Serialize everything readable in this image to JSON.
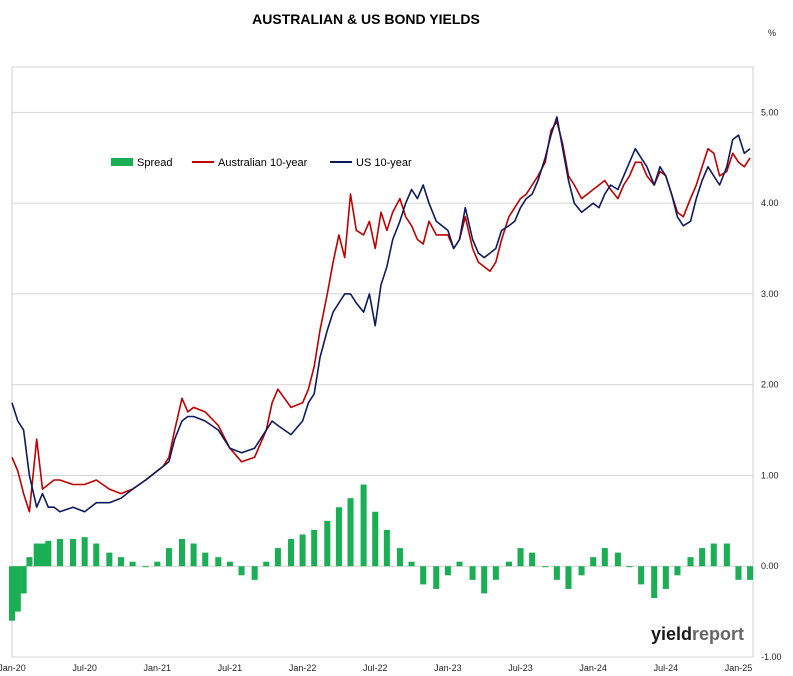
{
  "chart_data": {
    "type": "line",
    "title": "AUSTRALIAN & US BOND YIELDS",
    "ylabel": "%",
    "ylim": [
      -1.0,
      5.5
    ],
    "yticks": [
      "5.00",
      "4.00",
      "3.00",
      "2.00",
      "1.00",
      "0.00",
      "-1.00"
    ],
    "ytick_values": [
      5,
      4,
      3,
      2,
      1,
      0,
      -1
    ],
    "x_domain": [
      2020.0,
      2025.1
    ],
    "xticks": [
      "Jan-20",
      "Jul-20",
      "Jan-21",
      "Jul-21",
      "Jan-22",
      "Jul-22",
      "Jan-23",
      "Jul-23",
      "Jan-24",
      "Jul-24",
      "Jan-25"
    ],
    "xtick_values": [
      2020.0,
      2020.5,
      2021.0,
      2021.5,
      2022.0,
      2022.5,
      2023.0,
      2023.5,
      2024.0,
      2024.5,
      2025.0
    ],
    "grid": true,
    "legend_position": "top-left",
    "series": [
      {
        "name": "Spread",
        "kind": "bar",
        "color": "#1aaf54",
        "x": [
          2020.0,
          2020.04,
          2020.08,
          2020.12,
          2020.17,
          2020.21,
          2020.25,
          2020.33,
          2020.42,
          2020.5,
          2020.58,
          2020.67,
          2020.75,
          2020.83,
          2020.92,
          2021.0,
          2021.08,
          2021.17,
          2021.25,
          2021.33,
          2021.42,
          2021.5,
          2021.58,
          2021.67,
          2021.75,
          2021.83,
          2021.92,
          2022.0,
          2022.08,
          2022.17,
          2022.25,
          2022.33,
          2022.42,
          2022.5,
          2022.58,
          2022.67,
          2022.75,
          2022.83,
          2022.92,
          2023.0,
          2023.08,
          2023.17,
          2023.25,
          2023.33,
          2023.42,
          2023.5,
          2023.58,
          2023.67,
          2023.75,
          2023.83,
          2023.92,
          2024.0,
          2024.08,
          2024.17,
          2024.25,
          2024.33,
          2024.42,
          2024.5,
          2024.58,
          2024.67,
          2024.75,
          2024.83,
          2024.92,
          2025.0,
          2025.08
        ],
        "values": [
          -0.6,
          -0.5,
          -0.3,
          0.1,
          0.25,
          0.25,
          0.28,
          0.3,
          0.3,
          0.32,
          0.25,
          0.15,
          0.1,
          0.05,
          0.0,
          0.05,
          0.2,
          0.3,
          0.25,
          0.15,
          0.1,
          0.05,
          -0.1,
          -0.15,
          0.05,
          0.2,
          0.3,
          0.35,
          0.4,
          0.5,
          0.65,
          0.75,
          0.9,
          0.6,
          0.4,
          0.2,
          0.05,
          -0.2,
          -0.25,
          -0.1,
          0.05,
          -0.15,
          -0.3,
          -0.15,
          0.05,
          0.2,
          0.15,
          0.0,
          -0.15,
          -0.25,
          -0.1,
          0.1,
          0.2,
          0.15,
          0.0,
          -0.2,
          -0.35,
          -0.25,
          -0.1,
          0.1,
          0.2,
          0.25,
          0.25,
          -0.15,
          -0.15
        ]
      },
      {
        "name": "Australian 10-year",
        "kind": "line",
        "color": "#c00000",
        "x": [
          2020.0,
          2020.04,
          2020.08,
          2020.12,
          2020.17,
          2020.21,
          2020.25,
          2020.29,
          2020.33,
          2020.42,
          2020.5,
          2020.58,
          2020.67,
          2020.75,
          2020.83,
          2020.92,
          2021.0,
          2021.04,
          2021.08,
          2021.12,
          2021.17,
          2021.21,
          2021.25,
          2021.33,
          2021.42,
          2021.5,
          2021.58,
          2021.67,
          2021.75,
          2021.79,
          2021.83,
          2021.92,
          2022.0,
          2022.04,
          2022.08,
          2022.12,
          2022.17,
          2022.21,
          2022.25,
          2022.29,
          2022.33,
          2022.37,
          2022.42,
          2022.46,
          2022.5,
          2022.54,
          2022.58,
          2022.62,
          2022.67,
          2022.71,
          2022.75,
          2022.79,
          2022.83,
          2022.87,
          2022.92,
          2023.0,
          2023.04,
          2023.08,
          2023.12,
          2023.17,
          2023.21,
          2023.25,
          2023.29,
          2023.33,
          2023.37,
          2023.42,
          2023.46,
          2023.5,
          2023.54,
          2023.58,
          2023.62,
          2023.67,
          2023.71,
          2023.75,
          2023.79,
          2023.83,
          2023.87,
          2023.92,
          2024.0,
          2024.04,
          2024.08,
          2024.12,
          2024.17,
          2024.21,
          2024.25,
          2024.29,
          2024.33,
          2024.37,
          2024.42,
          2024.46,
          2024.5,
          2024.54,
          2024.58,
          2024.62,
          2024.67,
          2024.71,
          2024.75,
          2024.79,
          2024.83,
          2024.87,
          2024.92,
          2024.96,
          2025.0,
          2025.04,
          2025.08
        ],
        "values": [
          1.2,
          1.05,
          0.8,
          0.6,
          1.4,
          0.85,
          0.9,
          0.95,
          0.95,
          0.9,
          0.9,
          0.95,
          0.85,
          0.8,
          0.85,
          0.95,
          1.05,
          1.1,
          1.2,
          1.5,
          1.85,
          1.7,
          1.75,
          1.7,
          1.55,
          1.3,
          1.15,
          1.2,
          1.5,
          1.8,
          1.95,
          1.75,
          1.8,
          1.95,
          2.2,
          2.6,
          3.0,
          3.35,
          3.65,
          3.4,
          4.1,
          3.7,
          3.65,
          3.8,
          3.5,
          3.9,
          3.7,
          3.9,
          4.05,
          3.85,
          3.75,
          3.6,
          3.55,
          3.8,
          3.65,
          3.65,
          3.5,
          3.6,
          3.85,
          3.5,
          3.35,
          3.3,
          3.25,
          3.35,
          3.6,
          3.85,
          3.95,
          4.05,
          4.1,
          4.2,
          4.3,
          4.45,
          4.8,
          4.9,
          4.65,
          4.3,
          4.2,
          4.05,
          4.15,
          4.2,
          4.25,
          4.15,
          4.05,
          4.2,
          4.3,
          4.45,
          4.45,
          4.3,
          4.2,
          4.35,
          4.3,
          4.1,
          3.9,
          3.85,
          4.05,
          4.2,
          4.4,
          4.6,
          4.55,
          4.3,
          4.35,
          4.55,
          4.45,
          4.4,
          4.5
        ]
      },
      {
        "name": "US 10-year",
        "kind": "line",
        "color": "#0d1b5e",
        "x": [
          2020.0,
          2020.04,
          2020.08,
          2020.12,
          2020.17,
          2020.21,
          2020.25,
          2020.29,
          2020.33,
          2020.42,
          2020.5,
          2020.58,
          2020.67,
          2020.75,
          2020.83,
          2020.92,
          2021.0,
          2021.04,
          2021.08,
          2021.12,
          2021.17,
          2021.21,
          2021.25,
          2021.33,
          2021.42,
          2021.5,
          2021.58,
          2021.67,
          2021.75,
          2021.79,
          2021.83,
          2021.92,
          2022.0,
          2022.04,
          2022.08,
          2022.12,
          2022.17,
          2022.21,
          2022.25,
          2022.29,
          2022.33,
          2022.37,
          2022.42,
          2022.46,
          2022.5,
          2022.54,
          2022.58,
          2022.62,
          2022.67,
          2022.71,
          2022.75,
          2022.79,
          2022.83,
          2022.87,
          2022.92,
          2023.0,
          2023.04,
          2023.08,
          2023.12,
          2023.17,
          2023.21,
          2023.25,
          2023.29,
          2023.33,
          2023.37,
          2023.42,
          2023.46,
          2023.5,
          2023.54,
          2023.58,
          2023.62,
          2023.67,
          2023.71,
          2023.75,
          2023.79,
          2023.83,
          2023.87,
          2023.92,
          2024.0,
          2024.04,
          2024.08,
          2024.12,
          2024.17,
          2024.21,
          2024.25,
          2024.29,
          2024.33,
          2024.37,
          2024.42,
          2024.46,
          2024.5,
          2024.54,
          2024.58,
          2024.62,
          2024.67,
          2024.71,
          2024.75,
          2024.79,
          2024.83,
          2024.87,
          2024.92,
          2024.96,
          2025.0,
          2025.04,
          2025.08
        ],
        "values": [
          1.8,
          1.6,
          1.5,
          1.0,
          0.65,
          0.8,
          0.65,
          0.65,
          0.6,
          0.65,
          0.6,
          0.7,
          0.7,
          0.75,
          0.85,
          0.95,
          1.05,
          1.1,
          1.15,
          1.4,
          1.6,
          1.65,
          1.65,
          1.6,
          1.5,
          1.3,
          1.25,
          1.3,
          1.5,
          1.6,
          1.55,
          1.45,
          1.6,
          1.8,
          1.9,
          2.3,
          2.6,
          2.8,
          2.9,
          3.0,
          3.0,
          2.9,
          2.8,
          3.0,
          2.65,
          3.1,
          3.3,
          3.6,
          3.8,
          4.0,
          4.15,
          4.05,
          4.2,
          4.0,
          3.8,
          3.7,
          3.5,
          3.6,
          3.95,
          3.6,
          3.45,
          3.4,
          3.45,
          3.5,
          3.7,
          3.75,
          3.8,
          3.95,
          4.05,
          4.1,
          4.25,
          4.5,
          4.75,
          4.95,
          4.6,
          4.25,
          4.0,
          3.9,
          4.0,
          3.95,
          4.1,
          4.2,
          4.15,
          4.3,
          4.45,
          4.6,
          4.5,
          4.4,
          4.2,
          4.4,
          4.3,
          4.1,
          3.85,
          3.75,
          3.8,
          4.05,
          4.25,
          4.4,
          4.3,
          4.2,
          4.4,
          4.7,
          4.75,
          4.55,
          4.6
        ]
      }
    ]
  },
  "logo_text": {
    "a": "yield",
    "b": "report"
  }
}
